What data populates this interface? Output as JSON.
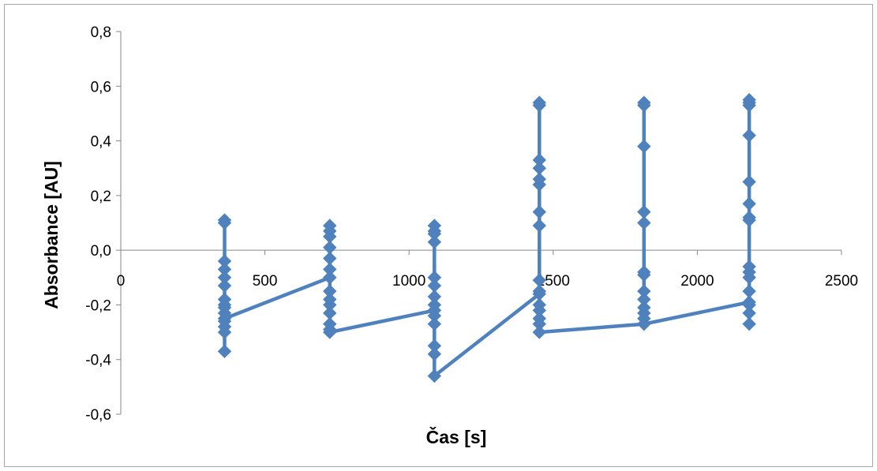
{
  "chart_data": {
    "type": "line",
    "title": "",
    "xlabel": "Čas [s]",
    "ylabel": "Absorbance [AU]",
    "xlim": [
      0,
      2500
    ],
    "ylim": [
      -0.6,
      0.8
    ],
    "x_ticks": [
      {
        "value": 0,
        "label": "0"
      },
      {
        "value": 500,
        "label": "500"
      },
      {
        "value": 1000,
        "label": "1000"
      },
      {
        "value": 1500,
        "label": "1500"
      },
      {
        "value": 2000,
        "label": "2000"
      },
      {
        "value": 2500,
        "label": "2500"
      }
    ],
    "y_ticks": [
      {
        "value": -0.6,
        "label": "-0,6"
      },
      {
        "value": -0.4,
        "label": "-0,4"
      },
      {
        "value": -0.2,
        "label": "-0,2"
      },
      {
        "value": 0.0,
        "label": "0,0"
      },
      {
        "value": 0.2,
        "label": "0,2"
      },
      {
        "value": 0.4,
        "label": "0,4"
      },
      {
        "value": 0.6,
        "label": "0,6"
      },
      {
        "value": 0.8,
        "label": "0,8"
      }
    ],
    "grid": false,
    "legend": "none",
    "marker": "diamond",
    "color": "#4f81bd",
    "series": [
      {
        "x": [
          360,
          360,
          360,
          360,
          360,
          360,
          360,
          360,
          360,
          360,
          360,
          360,
          360,
          360,
          360,
          725,
          725,
          725,
          725,
          725,
          725,
          725,
          725,
          725,
          725,
          725,
          725,
          725,
          725,
          725,
          1088,
          1088,
          1088,
          1088,
          1088,
          1088,
          1088,
          1088,
          1088,
          1088,
          1088,
          1088,
          1088,
          1088,
          1088,
          1088,
          1452,
          1452,
          1452,
          1452,
          1452,
          1452,
          1452,
          1452,
          1452,
          1452,
          1452,
          1452,
          1452,
          1452,
          1452,
          1452,
          1815,
          1815,
          1815,
          1815,
          1815,
          1815,
          1815,
          1815,
          1815,
          1815,
          1815,
          1815,
          1815,
          1815,
          2180,
          2180,
          2180,
          2180,
          2180,
          2180,
          2180,
          2180,
          2180,
          2180,
          2180,
          2180,
          2180,
          2180,
          2180,
          2180
        ],
        "y": [
          0.11,
          0.1,
          -0.04,
          -0.07,
          -0.1,
          -0.13,
          -0.18,
          -0.2,
          -0.21,
          -0.23,
          -0.26,
          -0.28,
          -0.3,
          -0.37,
          -0.25,
          -0.1,
          0.09,
          0.07,
          0.05,
          0.01,
          -0.03,
          -0.07,
          -0.1,
          -0.15,
          -0.18,
          -0.2,
          -0.23,
          -0.27,
          -0.29,
          -0.3,
          -0.22,
          -0.1,
          0.09,
          0.07,
          0.06,
          0.03,
          -0.1,
          -0.13,
          -0.17,
          -0.2,
          -0.22,
          -0.24,
          -0.27,
          -0.35,
          -0.38,
          -0.46,
          -0.16,
          -0.11,
          0.54,
          0.53,
          0.33,
          0.3,
          0.26,
          0.24,
          0.14,
          0.09,
          -0.15,
          -0.2,
          -0.22,
          -0.25,
          -0.27,
          -0.3,
          -0.27,
          -0.08,
          0.54,
          0.53,
          0.38,
          0.14,
          0.1,
          -0.09,
          -0.15,
          -0.18,
          -0.21,
          -0.23,
          -0.25,
          -0.27,
          -0.19,
          -0.08,
          0.55,
          0.54,
          0.53,
          0.42,
          0.25,
          0.17,
          0.12,
          0.11,
          -0.06,
          -0.1,
          -0.15,
          -0.2,
          -0.23,
          -0.27
        ]
      }
    ]
  }
}
